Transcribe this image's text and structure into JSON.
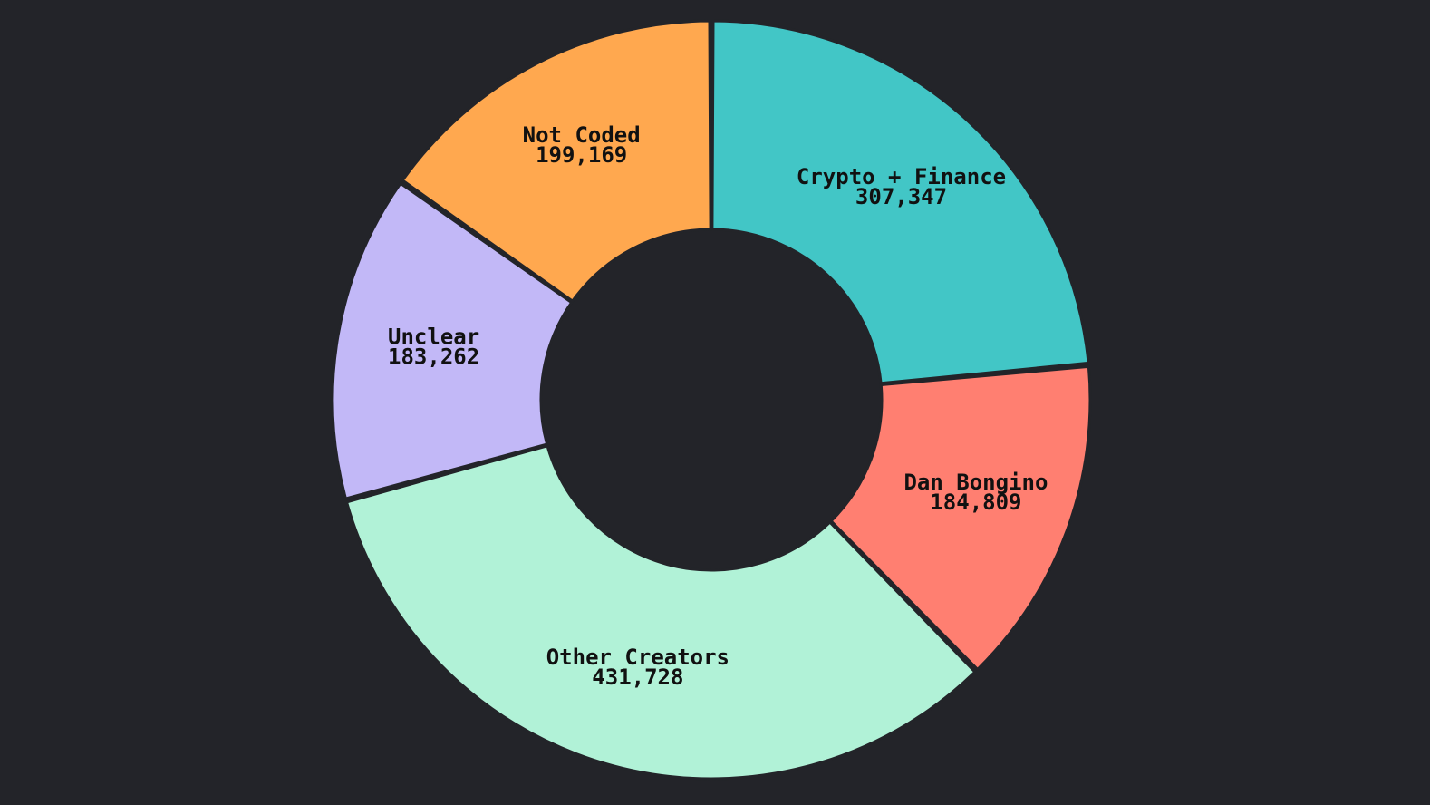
{
  "colors": {
    "background": "#232429",
    "separator": "#232429",
    "label_text": "#111111"
  },
  "chart_data": {
    "type": "pie",
    "variant": "donut",
    "start_angle_deg": 0,
    "direction": "clockwise",
    "grid": false,
    "legend": "none",
    "slices": [
      {
        "label": "Crypto + Finance",
        "value": 307347,
        "display": "307,347",
        "color": "#42C6C6"
      },
      {
        "label": "Dan Bongino",
        "value": 184809,
        "display": "184,809",
        "color": "#FF7F71"
      },
      {
        "label": "Other Creators",
        "value": 431728,
        "display": "431,728",
        "color": "#B1F2D7"
      },
      {
        "label": "Unclear",
        "value": 183262,
        "display": "183,262",
        "color": "#C2B8F7"
      },
      {
        "label": "Not Coded",
        "value": 199169,
        "display": "199,169",
        "color": "#FFA84F"
      }
    ]
  }
}
